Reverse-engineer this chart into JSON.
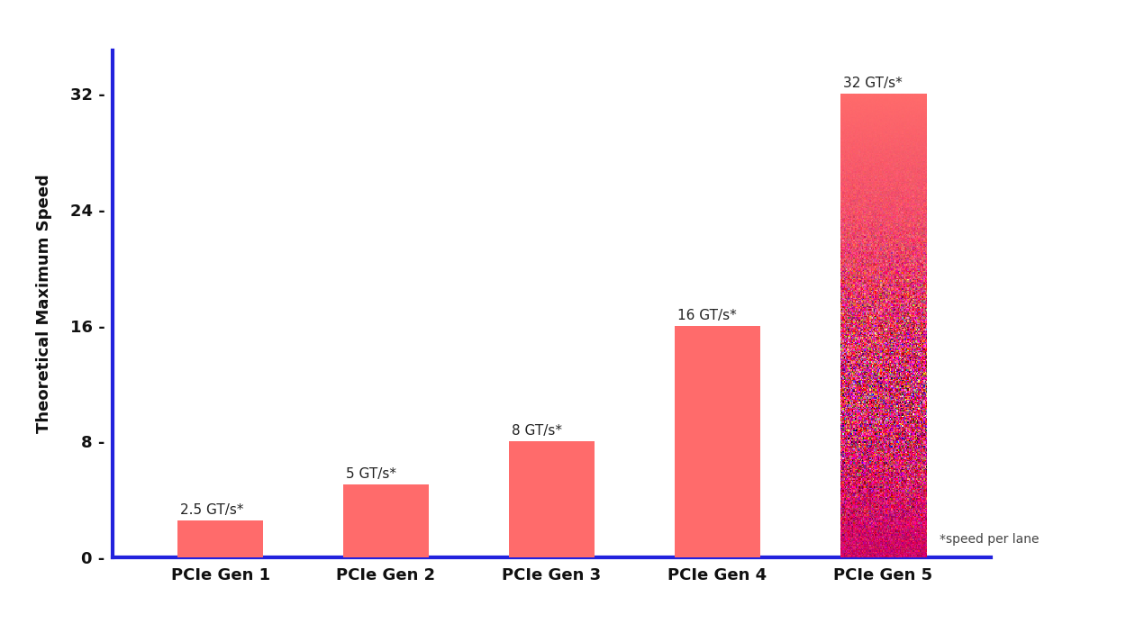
{
  "categories": [
    "PCIe Gen 1",
    "PCIe Gen 2",
    "PCIe Gen 3",
    "PCIe Gen 4",
    "PCIe Gen 5"
  ],
  "values": [
    2.5,
    5,
    8,
    16,
    32
  ],
  "labels": [
    "2.5 GT/s*",
    "5 GT/s*",
    "8 GT/s*",
    "16 GT/s*",
    "32 GT/s*"
  ],
  "bar_color_regular": "#FF6B6B",
  "bar_color_gen5_top": "#FF6B6B",
  "bar_color_gen5_bottom": "#CC0066",
  "axis_color": "#2222DD",
  "tick_label_color": "#111111",
  "ylabel": "Theoretical Maximum Speed",
  "ylabel_color": "#111111",
  "annotation_color": "#222222",
  "footnote": "*speed per lane",
  "footnote_color": "#444444",
  "background_color": "#FFFFFF",
  "yticks": [
    0,
    8,
    16,
    24,
    32
  ],
  "ylim": [
    0,
    35
  ],
  "bar_width": 0.52,
  "figsize": [
    12.5,
    7.03
  ],
  "dpi": 100
}
